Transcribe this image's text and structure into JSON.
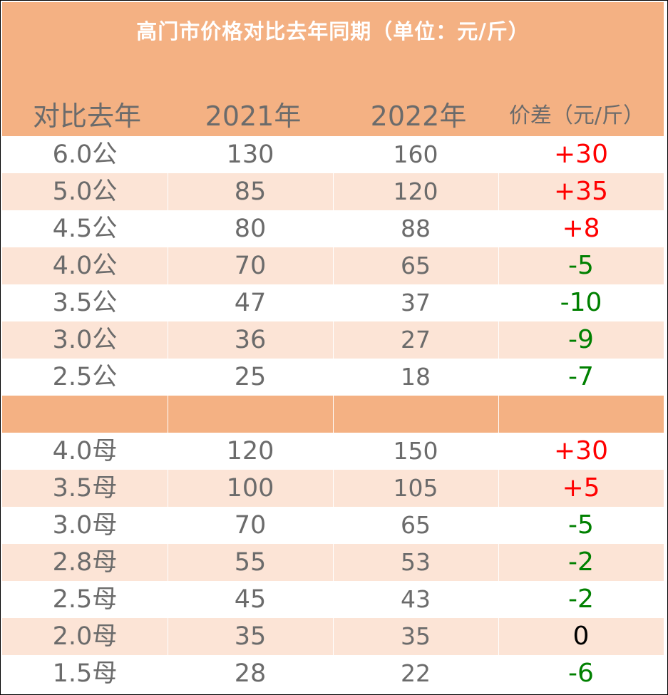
{
  "title": "高门市价格对比去年同期（单位：元/斤）",
  "headers": [
    "对比去年",
    "2021年",
    "2022年",
    "价差（元/斤）"
  ],
  "colors": {
    "header_bg": "#f4b183",
    "row_alt": "#fce4d6",
    "positive": "#ff0000",
    "negative": "#008000"
  },
  "gong": [
    {
      "spec": "6.0公",
      "y2021": "130",
      "y2022": "160",
      "diff": "+30",
      "sign": "pos"
    },
    {
      "spec": "5.0公",
      "y2021": "85",
      "y2022": "120",
      "diff": "+35",
      "sign": "pos"
    },
    {
      "spec": "4.5公",
      "y2021": "80",
      "y2022": "88",
      "diff": "+8",
      "sign": "pos"
    },
    {
      "spec": "4.0公",
      "y2021": "70",
      "y2022": "65",
      "diff": "-5",
      "sign": "neg"
    },
    {
      "spec": "3.5公",
      "y2021": "47",
      "y2022": "37",
      "diff": "-10",
      "sign": "neg"
    },
    {
      "spec": "3.0公",
      "y2021": "36",
      "y2022": "27",
      "diff": "-9",
      "sign": "neg"
    },
    {
      "spec": "2.5公",
      "y2021": "25",
      "y2022": "18",
      "diff": "-7",
      "sign": "neg"
    }
  ],
  "mu": [
    {
      "spec": "4.0母",
      "y2021": "120",
      "y2022": "150",
      "diff": "+30",
      "sign": "pos"
    },
    {
      "spec": "3.5母",
      "y2021": "100",
      "y2022": "105",
      "diff": "+5",
      "sign": "pos"
    },
    {
      "spec": "3.0母",
      "y2021": "70",
      "y2022": "65",
      "diff": "-5",
      "sign": "neg"
    },
    {
      "spec": "2.8母",
      "y2021": "55",
      "y2022": "53",
      "diff": "-2",
      "sign": "neg"
    },
    {
      "spec": "2.5母",
      "y2021": "45",
      "y2022": "43",
      "diff": "-2",
      "sign": "neg"
    },
    {
      "spec": "2.0母",
      "y2021": "35",
      "y2022": "35",
      "diff": "0",
      "sign": "zero"
    },
    {
      "spec": "1.5母",
      "y2021": "28",
      "y2022": "22",
      "diff": "-6",
      "sign": "neg"
    }
  ]
}
